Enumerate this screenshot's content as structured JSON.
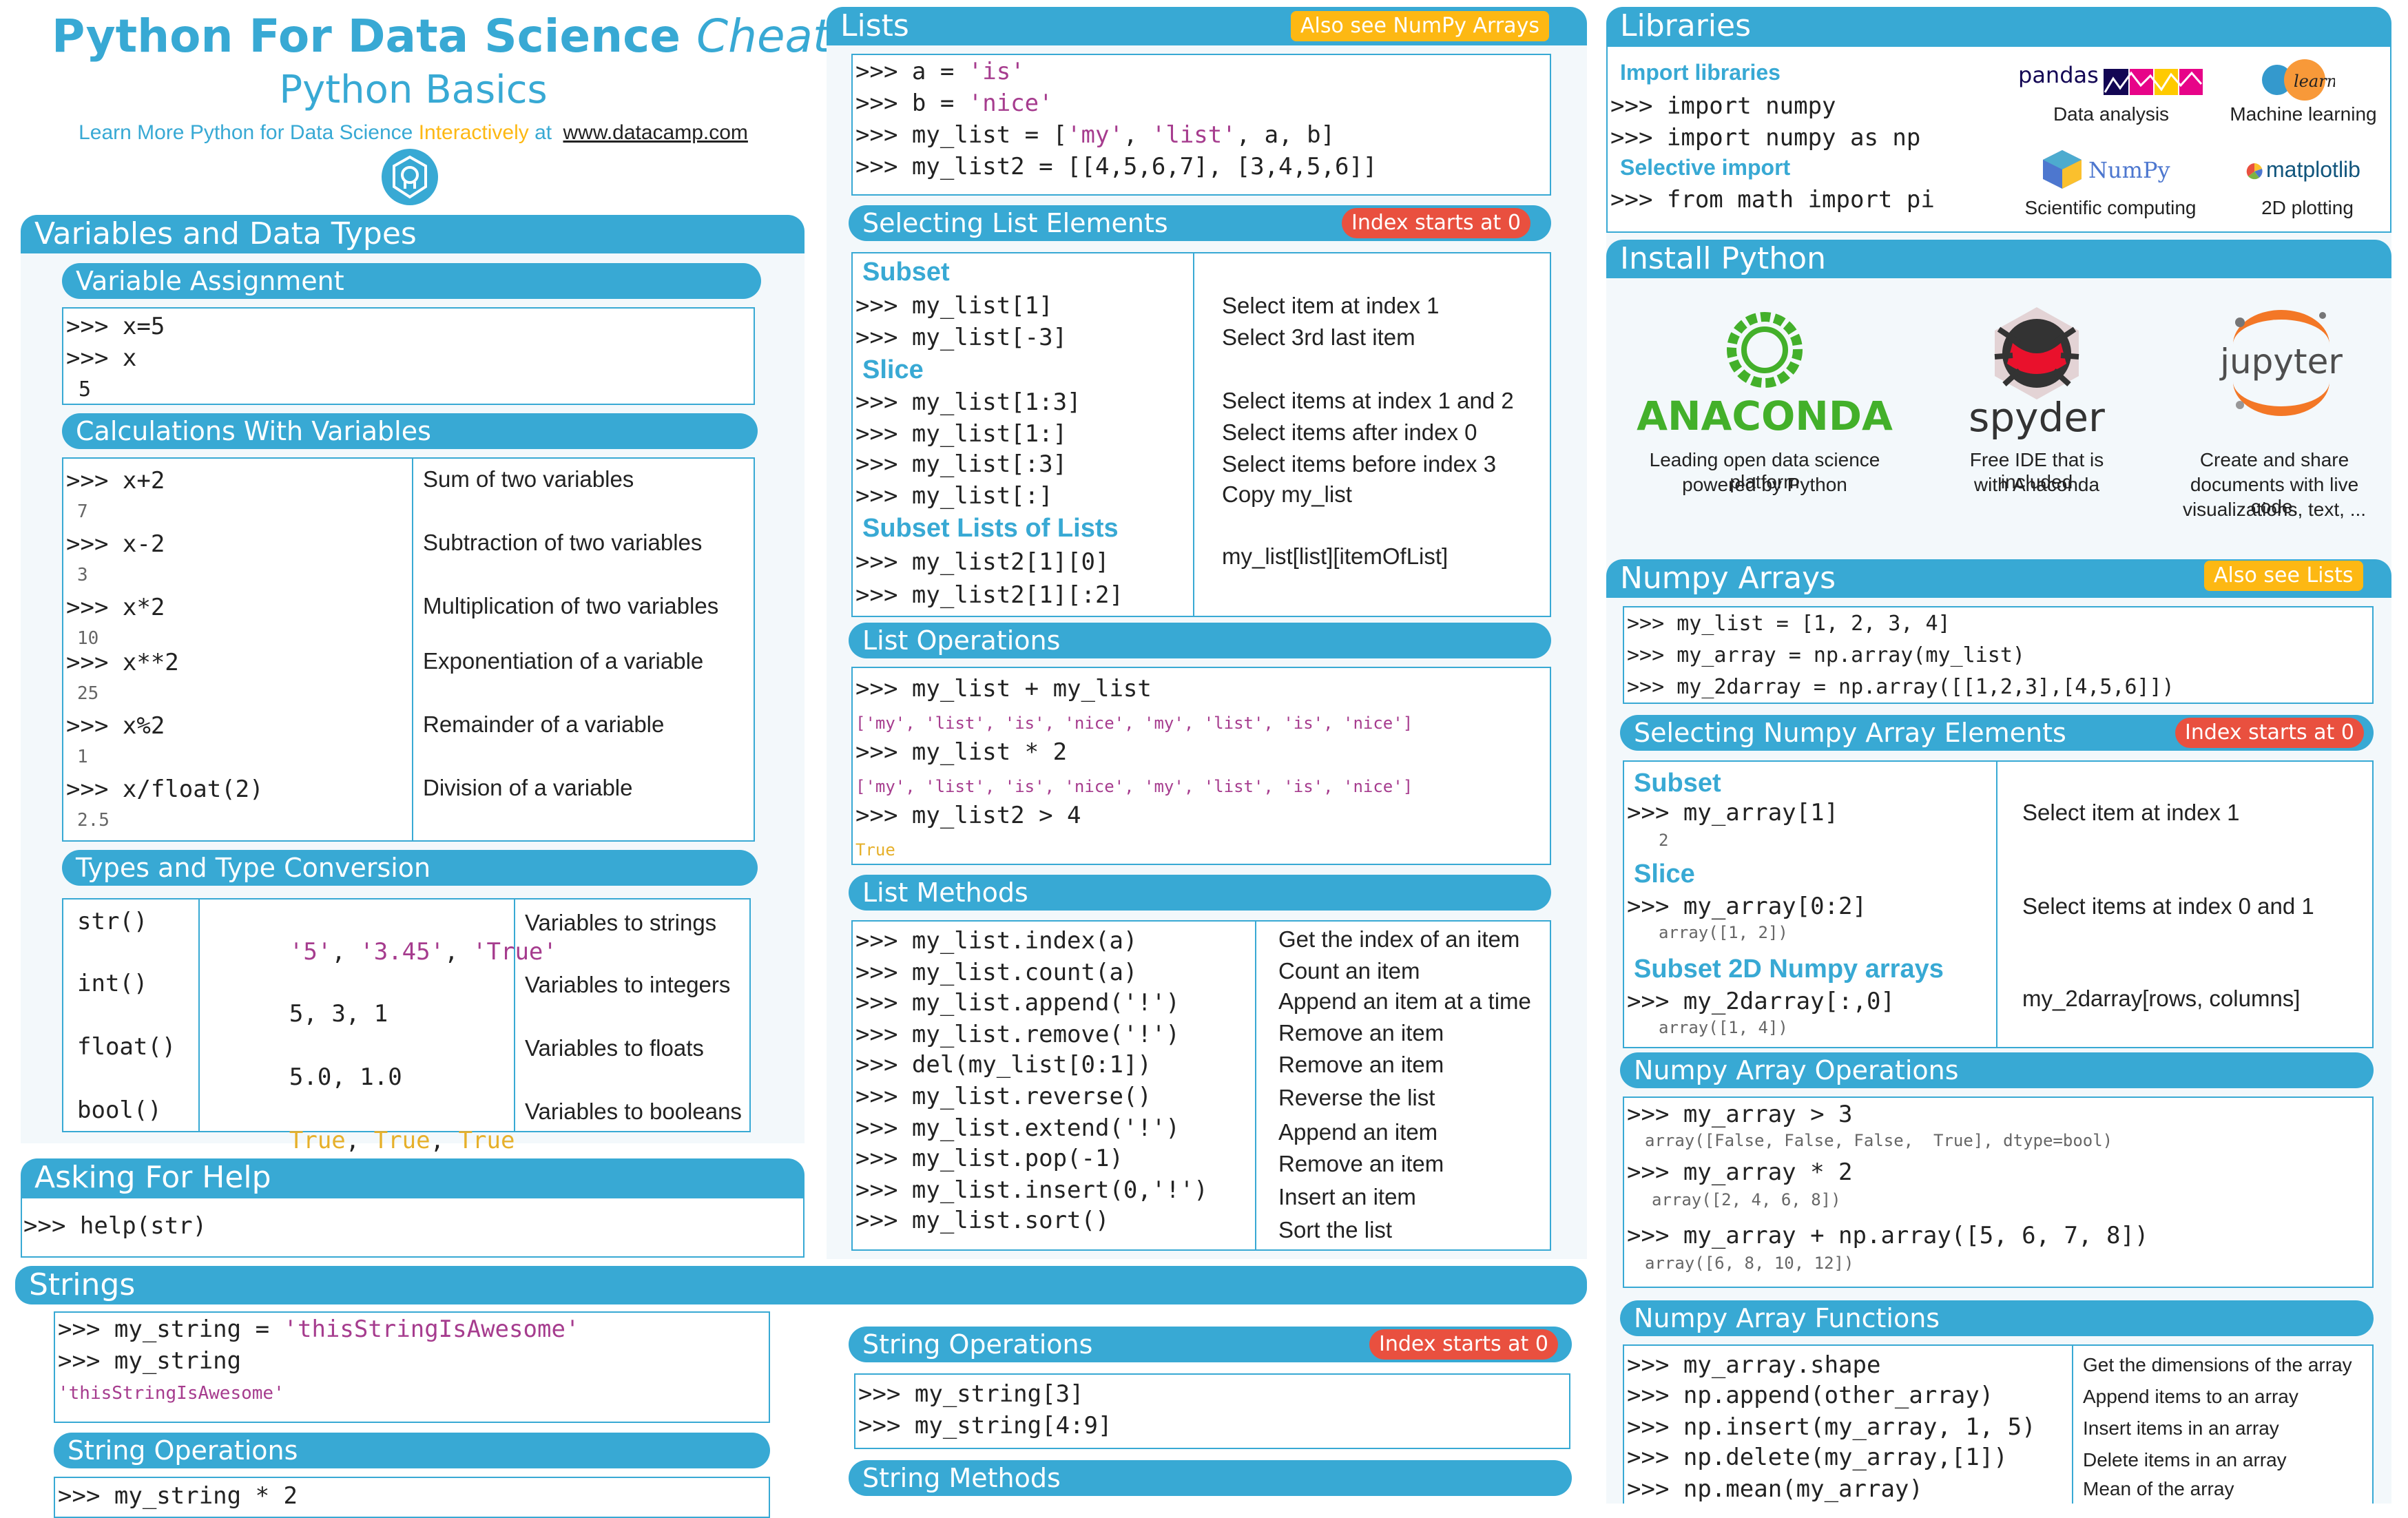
{
  "title": {
    "main": "Python For Data Science",
    "italic": "Cheat Sheet",
    "subtitle": "Python Basics",
    "learn_prefix": "Learn More Python for Data Science",
    "learn_interactively": "Interactively",
    "learn_at": "at",
    "link": "www.datacamp.com"
  },
  "vars": {
    "header": "Variables and Data Types",
    "assign": {
      "header": "Variable Assignment",
      "lines": [
        ">>> x=5",
        ">>> x",
        " 5"
      ]
    },
    "calc": {
      "header": "Calculations With Variables",
      "rows": [
        {
          "code": ">>> x+2",
          "out": "7",
          "desc": "Sum of two variables"
        },
        {
          "code": ">>> x-2",
          "out": "3",
          "desc": "Subtraction of two variables"
        },
        {
          "code": ">>> x*2",
          "out": "10",
          "desc": "Multiplication of two variables"
        },
        {
          "code": ">>> x**2",
          "out": "25",
          "desc": "Exponentiation of a variable"
        },
        {
          "code": ">>> x%2",
          "out": "1",
          "desc": "Remainder of a variable"
        },
        {
          "code": ">>> x/float(2)",
          "out": "2.5",
          "desc": "Division of a variable"
        }
      ]
    },
    "types": {
      "header": "Types and Type Conversion",
      "rows": [
        {
          "fn": "str()",
          "vals": [
            "'5'",
            "'3.45'",
            "'True'"
          ],
          "desc": "Variables to strings"
        },
        {
          "fn": "int()",
          "vals": [
            "5",
            "3",
            "1"
          ],
          "desc": "Variables to integers"
        },
        {
          "fn": "float()",
          "vals": [
            "5.0",
            "1.0"
          ],
          "desc": "Variables to floats"
        },
        {
          "fn": "bool()",
          "vals": [
            "True",
            "True",
            "True"
          ],
          "desc": "Variables to booleans"
        }
      ]
    }
  },
  "help": {
    "header": "Asking For Help",
    "code": ">>> help(str)"
  },
  "strings": {
    "header": "Strings",
    "lines": [
      ">>> my_string = ",
      "'thisStringIsAwesome'",
      ">>> my_string",
      "'thisStringIsAwesome'"
    ],
    "ops_header": "String Operations",
    "ops_code": ">>> my_string * 2",
    "ops2_header": "String Operations",
    "ops2_tag": "Index starts at 0",
    "ops2_lines": [
      ">>> my_string[3]",
      ">>> my_string[4:9]"
    ],
    "methods_header": "String Methods"
  },
  "lists": {
    "header": "Lists",
    "tag": "Also see NumPy Arrays",
    "lines": [
      ">>> a = ",
      "'is'",
      ">>> b = ",
      "'nice'",
      ">>> my_list = [",
      "'my'",
      ", ",
      "'list'",
      ", a, b]",
      ">>> my_list2 = [[4,5,6,7], [3,4,5,6]]"
    ],
    "select": {
      "header": "Selecting List Elements",
      "tag": "Index starts at 0",
      "subset": "Subset",
      "slice": "Slice",
      "subset2": "Subset Lists of Lists",
      "rows": [
        {
          "code": ">>> my_list[1]",
          "desc": "Select item at index 1"
        },
        {
          "code": ">>> my_list[-3]",
          "desc": "Select 3rd last item"
        },
        {
          "code": ">>> my_list[1:3]",
          "desc": "Select items at index 1 and 2"
        },
        {
          "code": ">>> my_list[1:]",
          "desc": "Select items after index 0"
        },
        {
          "code": ">>> my_list[:3]",
          "desc": "Select items before index 3"
        },
        {
          "code": ">>> my_list[:]",
          "desc": "Copy my_list"
        },
        {
          "code": ">>> my_list2[1][0]",
          "desc": "my_list[list][itemOfList]"
        },
        {
          "code": ">>> my_list2[1][:2]",
          "desc": ""
        }
      ]
    },
    "ops": {
      "header": "List Operations",
      "lines": [
        ">>> my_list + my_list",
        "['my', 'list', 'is', 'nice', 'my', 'list', 'is', 'nice']",
        ">>> my_list * 2",
        "['my', 'list', 'is', 'nice', 'my', 'list', 'is', 'nice']",
        ">>> my_list2 > 4",
        "True"
      ]
    },
    "methods": {
      "header": "List Methods",
      "rows": [
        {
          "code": ">>> my_list.index(a)",
          "desc": "Get the index of an item"
        },
        {
          "code": ">>> my_list.count(a)",
          "desc": "Count an item"
        },
        {
          "code": ">>> my_list.append('!')",
          "desc": "Append an item at a time"
        },
        {
          "code": ">>> my_list.remove('!')",
          "desc": "Remove an item"
        },
        {
          "code": ">>> del(my_list[0:1])",
          "desc": "Remove an item"
        },
        {
          "code": ">>> my_list.reverse()",
          "desc": "Reverse the list"
        },
        {
          "code": ">>> my_list.extend('!')",
          "desc": "Append an item"
        },
        {
          "code": ">>> my_list.pop(-1)",
          "desc": "Remove an item"
        },
        {
          "code": ">>> my_list.insert(0,'!')",
          "desc": "Insert an item"
        },
        {
          "code": ">>> my_list.sort()",
          "desc": "Sort the list"
        }
      ]
    }
  },
  "libraries": {
    "header": "Libraries",
    "import_label": "Import libraries",
    "import_lines": [
      ">>> import numpy",
      ">>> import numpy as np"
    ],
    "selective_label": "Selective import",
    "selective_line": ">>> from math import pi",
    "logos": [
      {
        "name": "pandas",
        "caption": "Data analysis"
      },
      {
        "name": "learn",
        "caption": "Machine learning"
      },
      {
        "name": "NumPy",
        "caption": "Scientific computing"
      },
      {
        "name": "matplotlib",
        "caption": "2D plotting"
      }
    ]
  },
  "install": {
    "header": "Install Python",
    "items": [
      {
        "name": "ANACONDA",
        "caption": [
          "Leading open data science platform",
          "powered by Python"
        ]
      },
      {
        "name": "spyder",
        "caption": [
          "Free IDE that is included",
          "with Anaconda"
        ]
      },
      {
        "name": "jupyter",
        "caption": [
          "Create and share",
          "documents with live code,",
          "visualizations, text, ..."
        ]
      }
    ]
  },
  "numpy": {
    "header": "Numpy Arrays",
    "tag": "Also see Lists",
    "lines": [
      ">>> my_list = [1, 2, 3, 4]",
      ">>> my_array = np.array(my_list)",
      ">>> my_2darray = np.array([[1,2,3],[4,5,6]])"
    ],
    "select": {
      "header": "Selecting Numpy Array Elements",
      "tag": "Index starts at 0",
      "subset": "Subset",
      "slice": "Slice",
      "subset2": "Subset 2D Numpy arrays",
      "rows": [
        {
          "code": ">>> my_array[1]",
          "out": "2",
          "desc": "Select item at index 1"
        },
        {
          "code": ">>> my_array[0:2]",
          "out": "array([1, 2])",
          "desc": "Select items at index 0 and 1"
        },
        {
          "code": ">>> my_2darray[:,0]",
          "out": "array([1, 4])",
          "desc": "my_2darray[rows, columns]"
        }
      ]
    },
    "ops": {
      "header": "Numpy Array Operations",
      "rows": [
        {
          "code": ">>> my_array > 3",
          "out": "array([False, False, False,  True], dtype=bool)"
        },
        {
          "code": ">>> my_array * 2",
          "out": "array([2, 4, 6, 8])"
        },
        {
          "code": ">>> my_array + np.array([5, 6, 7, 8])",
          "out": "array([6, 8, 10, 12])"
        }
      ]
    },
    "funcs": {
      "header": "Numpy Array Functions",
      "rows": [
        {
          "code": ">>> my_array.shape",
          "desc": "Get the dimensions of the array"
        },
        {
          "code": ">>> np.append(other_array)",
          "desc": "Append items to an array"
        },
        {
          "code": ">>> np.insert(my_array, 1, 5)",
          "desc": "Insert items in an array"
        },
        {
          "code": ">>> np.delete(my_array,[1])",
          "desc": "Delete items in an array"
        },
        {
          "code": ">>> np.mean(my_array)",
          "desc": "Mean of the array"
        }
      ]
    }
  }
}
